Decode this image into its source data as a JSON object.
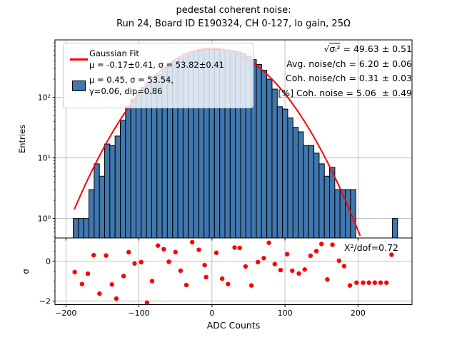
{
  "figure": {
    "title": {
      "line1": "pedestal coherent noise:",
      "line2": "Run 24, Board ID E190324, CH 0-127, lo gain, 25Ω"
    },
    "axes": {
      "main_ylabel": "Entries",
      "residual_ylabel": "σ",
      "xlabel": "ADC Counts"
    }
  },
  "legend": {
    "gaussian_fit": {
      "title": "Gaussian Fit",
      "params": "μ = -0.17±0.41, σ = 53.82±0.41"
    },
    "histogram": {
      "params_line1": "μ = 0.45, σ = 53.54,",
      "params_line2": "γ=0.06, dip=0.86"
    }
  },
  "stats": {
    "sigma_tot": {
      "radical": "√",
      "radicand": "σᵢ²",
      "value": " = 49.63 ± 0.51"
    },
    "avg_noise": "Avg. noise/ch = 6.20 ± 0.06",
    "coh_noise": "Coh. noise/ch = 0.31 ± 0.03",
    "pct_coh_noise": "[%] Coh. noise = 5.06  ± 0.49"
  },
  "residual_stats": {
    "chi2": "X²/dof=0.72"
  },
  "colors": {
    "bar_fill": "#3f77ae",
    "bar_edge": "#000000",
    "fit_line": "#ff0000",
    "residual_marker": "#ff0000",
    "grid": "#b0b0b0",
    "legend_border": "#cccccc"
  },
  "chart_data": [
    {
      "type": "bar",
      "title": "pedestal coherent noise: Run 24, Board ID E190324, CH 0-127, lo gain, 25Ω",
      "xlabel": "",
      "ylabel": "Entries",
      "yscale": "log",
      "grid": true,
      "xlim": [
        -215,
        274
      ],
      "ylim": [
        0.477,
        889
      ],
      "bin_start": -190,
      "bin_width": 7.165,
      "counts": [
        1,
        1,
        1,
        3,
        8,
        5,
        17,
        16,
        23,
        42,
        70,
        92,
        120,
        146,
        177,
        215,
        236,
        310,
        333,
        388,
        437,
        523,
        558,
        585,
        600,
        610,
        618,
        620,
        615,
        605,
        590,
        565,
        530,
        480,
        420,
        350,
        280,
        200,
        137,
        70,
        64,
        46,
        32,
        27,
        16,
        16,
        12,
        8,
        5,
        7,
        3,
        3,
        3,
        3,
        0,
        0,
        0,
        0,
        0,
        0,
        0,
        1
      ],
      "x_ticks": [
        {
          "v": -200,
          "label": "−200"
        },
        {
          "v": -100,
          "label": "−100"
        },
        {
          "v": 0,
          "label": "0"
        },
        {
          "v": 100,
          "label": "100"
        },
        {
          "v": 200,
          "label": "200"
        }
      ],
      "y_ticks": [
        {
          "v": 1,
          "label": "10⁰"
        },
        {
          "v": 10,
          "label": "10¹"
        },
        {
          "v": 100,
          "label": "10²"
        }
      ],
      "fit": {
        "label": "Gaussian Fit",
        "A": 645,
        "mu": -0.17,
        "sigma": 53.82,
        "x_range": [
          -188.5,
          204.4
        ]
      }
    },
    {
      "type": "scatter",
      "xlabel": "ADC Counts",
      "ylabel": "σ",
      "grid": true,
      "xlim": [
        -215,
        274
      ],
      "ylim": [
        -2.18,
        1.16
      ],
      "annotation": "X²/dof=0.72",
      "y_ticks": [
        {
          "v": 0,
          "label": "0"
        },
        {
          "v": -2,
          "label": "−2"
        }
      ],
      "y_minor_ticks": [
        1,
        0.5,
        -0.5,
        -1,
        -1.5
      ],
      "points": [
        [
          -188,
          -0.55
        ],
        [
          -178,
          -1.15
        ],
        [
          -170,
          -0.63
        ],
        [
          -162,
          0.3
        ],
        [
          -154,
          -1.63
        ],
        [
          -145,
          0.28
        ],
        [
          -137,
          -1.17
        ],
        [
          -131,
          -1.88
        ],
        [
          -121,
          -0.75
        ],
        [
          -114,
          0.45
        ],
        [
          -106,
          -0.12
        ],
        [
          -97,
          -0.05
        ],
        [
          -89,
          -2.08
        ],
        [
          -82,
          -1.0
        ],
        [
          -74,
          0.78
        ],
        [
          -66,
          0.6
        ],
        [
          -59,
          -0.03
        ],
        [
          -50,
          0.45
        ],
        [
          -43,
          -0.48
        ],
        [
          -35,
          -1.2
        ],
        [
          -27,
          0.95
        ],
        [
          -18,
          0.57
        ],
        [
          -10,
          -0.2
        ],
        [
          -8,
          -0.8
        ],
        [
          6,
          0.42
        ],
        [
          14,
          -0.88
        ],
        [
          22,
          -1.15
        ],
        [
          31,
          0.68
        ],
        [
          38,
          0.66
        ],
        [
          46,
          -0.27
        ],
        [
          54,
          -1.22
        ],
        [
          63,
          -0.05
        ],
        [
          71,
          0.15
        ],
        [
          78,
          0.92
        ],
        [
          86,
          -0.15
        ],
        [
          94,
          -0.45
        ],
        [
          103,
          0.35
        ],
        [
          110,
          -0.48
        ],
        [
          119,
          -0.62
        ],
        [
          127,
          -0.42
        ],
        [
          135,
          0.27
        ],
        [
          143,
          0.5
        ],
        [
          150,
          0.86
        ],
        [
          158,
          -0.92
        ],
        [
          165,
          0.82
        ],
        [
          174,
          0.02
        ],
        [
          181,
          -0.25
        ],
        [
          189,
          -1.22
        ],
        [
          198,
          -1.08
        ],
        [
          207,
          -1.08
        ],
        [
          215,
          -1.08
        ],
        [
          223,
          -1.08
        ],
        [
          231,
          -1.08
        ],
        [
          239,
          -1.08
        ],
        [
          246,
          0.32
        ]
      ]
    }
  ]
}
